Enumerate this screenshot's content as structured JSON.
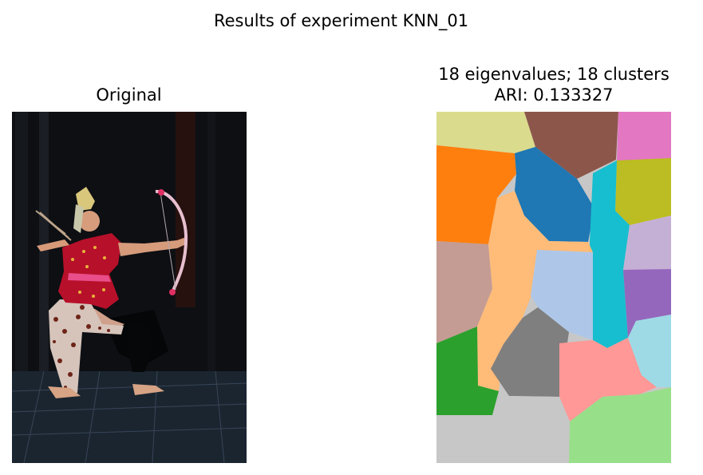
{
  "figure": {
    "suptitle": "Results of experiment KNN_01"
  },
  "left_panel": {
    "title": "Original",
    "image_subject": "dancer with bow in dark room"
  },
  "right_panel": {
    "title_line1": "18 eigenvalues; 18 clusters",
    "title_line2": "ARI: 0.133327",
    "segment_colors": [
      "#dbdb8d",
      "#8c564b",
      "#e377c2",
      "#ff7f0e",
      "#1f77b4",
      "#bcbd22",
      "#17becf",
      "#c5b0d5",
      "#9467bd",
      "#c49c94",
      "#ffbb78",
      "#aec7e8",
      "#7f7f7f",
      "#ff9896",
      "#9edae5",
      "#2ca02c",
      "#c7c7c7",
      "#98df8a"
    ]
  }
}
